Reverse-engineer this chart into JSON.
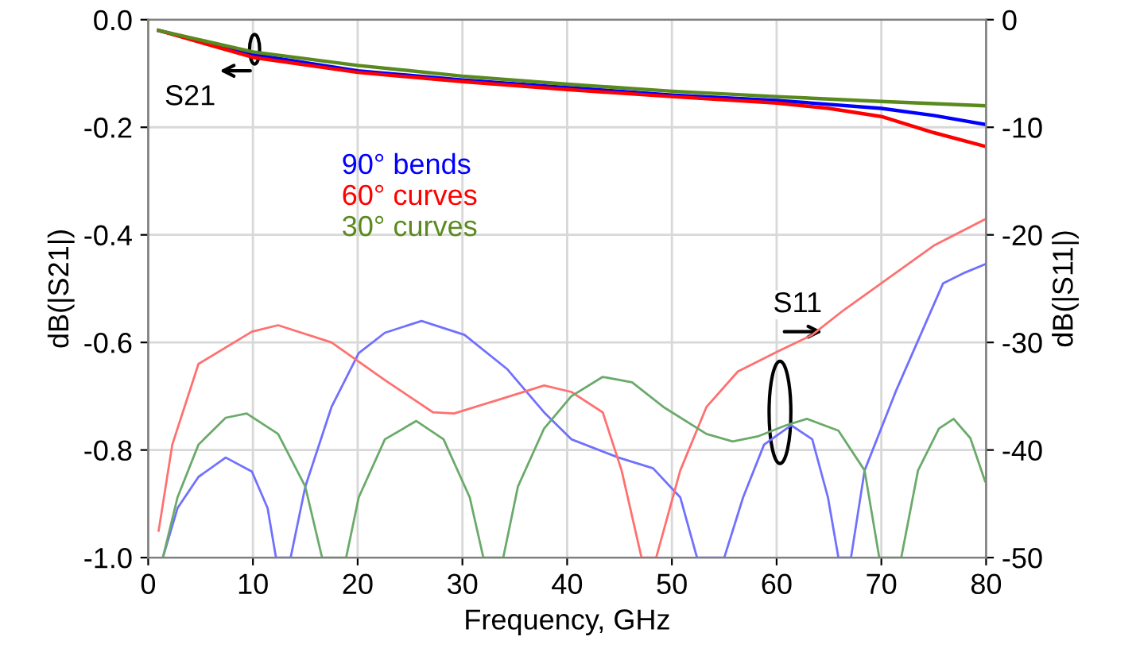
{
  "chart_data": {
    "type": "line",
    "xlabel": "Frequency, GHz",
    "ylabel": "dB(|S21|)",
    "y2label": "dB(|S11|)",
    "xlim": [
      0,
      80
    ],
    "xticks": [
      0,
      10,
      20,
      30,
      40,
      50,
      60,
      70,
      80
    ],
    "ylim": [
      -1.0,
      0.0
    ],
    "yticks": [
      {
        "value": 0,
        "label": "0.0"
      },
      {
        "value": -0.2,
        "label": "-0.2"
      },
      {
        "value": -0.4,
        "label": "-0.4"
      },
      {
        "value": -0.6,
        "label": "-0.6"
      },
      {
        "value": -0.8,
        "label": "-0.8"
      },
      {
        "value": -1.0,
        "label": "-1.0"
      }
    ],
    "y2lim": [
      -50,
      0
    ],
    "y2ticks": [
      0,
      -10,
      -20,
      -30,
      -40,
      -50
    ],
    "grid": true,
    "legend": "top left",
    "line_style": "solid",
    "marker": "none",
    "annotations": [
      "S21",
      "S11"
    ],
    "series": [
      {
        "name": "90° bends",
        "color": "#0000ff",
        "x": [
          1,
          10,
          20,
          30,
          40,
          50,
          60,
          70,
          75,
          80
        ],
        "values": [
          -0.02,
          -0.065,
          -0.095,
          -0.112,
          -0.126,
          -0.14,
          -0.15,
          -0.165,
          -0.178,
          -0.195
        ]
      },
      {
        "name": "60° curves",
        "color": "#ff0000",
        "x": [
          1,
          10,
          20,
          30,
          40,
          50,
          60,
          65,
          70,
          75,
          80
        ],
        "values": [
          -0.02,
          -0.07,
          -0.098,
          -0.115,
          -0.13,
          -0.143,
          -0.155,
          -0.165,
          -0.18,
          -0.21,
          -0.236
        ]
      },
      {
        "name": "30° curves",
        "color": "#5a8a1e",
        "x": [
          1,
          10,
          20,
          30,
          40,
          50,
          60,
          70,
          80
        ],
        "values": [
          -0.02,
          -0.06,
          -0.085,
          -0.105,
          -0.12,
          -0.133,
          -0.143,
          -0.152,
          -0.16
        ]
      },
      {
        "color": "#7070ff",
        "axis": "y2",
        "x": [
          1.4,
          2.8,
          4.8,
          7.4,
          9.9,
          11.4,
          12.2,
          13.6,
          15,
          17.5,
          20.1,
          22.6,
          26.1,
          30.2,
          34.3,
          37.8,
          40.4,
          44.9,
          48.2,
          50.8,
          52.4,
          55,
          56.8,
          58.8,
          61.4,
          63.4,
          64.9,
          65.9,
          67.1,
          68.4,
          71.4,
          75.9,
          78,
          80
        ],
        "values": [
          -50,
          -45.4,
          -42.5,
          -40.7,
          -42,
          -45.4,
          -50,
          -50,
          -43.4,
          -36,
          -31,
          -29.1,
          -28,
          -29.3,
          -32.5,
          -36.5,
          -39,
          -40.7,
          -41.7,
          -44.4,
          -50,
          -50,
          -44.4,
          -39.5,
          -37.7,
          -39,
          -44.4,
          -50,
          -50,
          -41.9,
          -34.5,
          -24.5,
          -23.5,
          -22.7
        ]
      },
      {
        "color": "#ff7070",
        "axis": "y2",
        "x": [
          1,
          2.3,
          4.8,
          9.9,
          12.4,
          17.5,
          22.6,
          27.2,
          29.2,
          33.2,
          37.8,
          40.4,
          43.4,
          45.2,
          47.1,
          48.5,
          50.8,
          53.3,
          56.3,
          60,
          63.4,
          66.4,
          70,
          75,
          80
        ],
        "values": [
          -47.5,
          -39.5,
          -32,
          -29,
          -28.4,
          -30,
          -33.5,
          -36.5,
          -36.6,
          -35.4,
          -34,
          -34.6,
          -36.5,
          -41.9,
          -50,
          -50,
          -41.9,
          -36,
          -32.7,
          -30.9,
          -29.3,
          -27,
          -24.5,
          -21,
          -18.5
        ]
      },
      {
        "color": "#6aaa6a",
        "axis": "y2",
        "x": [
          1.4,
          2.8,
          4.8,
          7.4,
          9.4,
          12.4,
          15,
          16.6,
          18.9,
          20.1,
          22.6,
          25.6,
          28.2,
          30.7,
          32,
          33.9,
          35.3,
          37.8,
          40.4,
          43.4,
          46.2,
          49.2,
          53.3,
          55.8,
          58.3,
          60.9,
          62.9,
          65.9,
          68.4,
          69.8,
          71.9,
          73.5,
          75.5,
          76.9,
          78.5,
          79.9
        ],
        "values": [
          -50,
          -44.4,
          -39.5,
          -37,
          -36.6,
          -38.5,
          -43.4,
          -50,
          -50,
          -44.4,
          -39,
          -37.3,
          -39,
          -44.4,
          -50,
          -50,
          -43.4,
          -38,
          -35,
          -33.2,
          -33.7,
          -36,
          -38.5,
          -39.2,
          -38.7,
          -37.7,
          -37.1,
          -38.2,
          -41.9,
          -50,
          -50,
          -41.9,
          -38,
          -37.1,
          -38.9,
          -42.9
        ]
      }
    ]
  }
}
